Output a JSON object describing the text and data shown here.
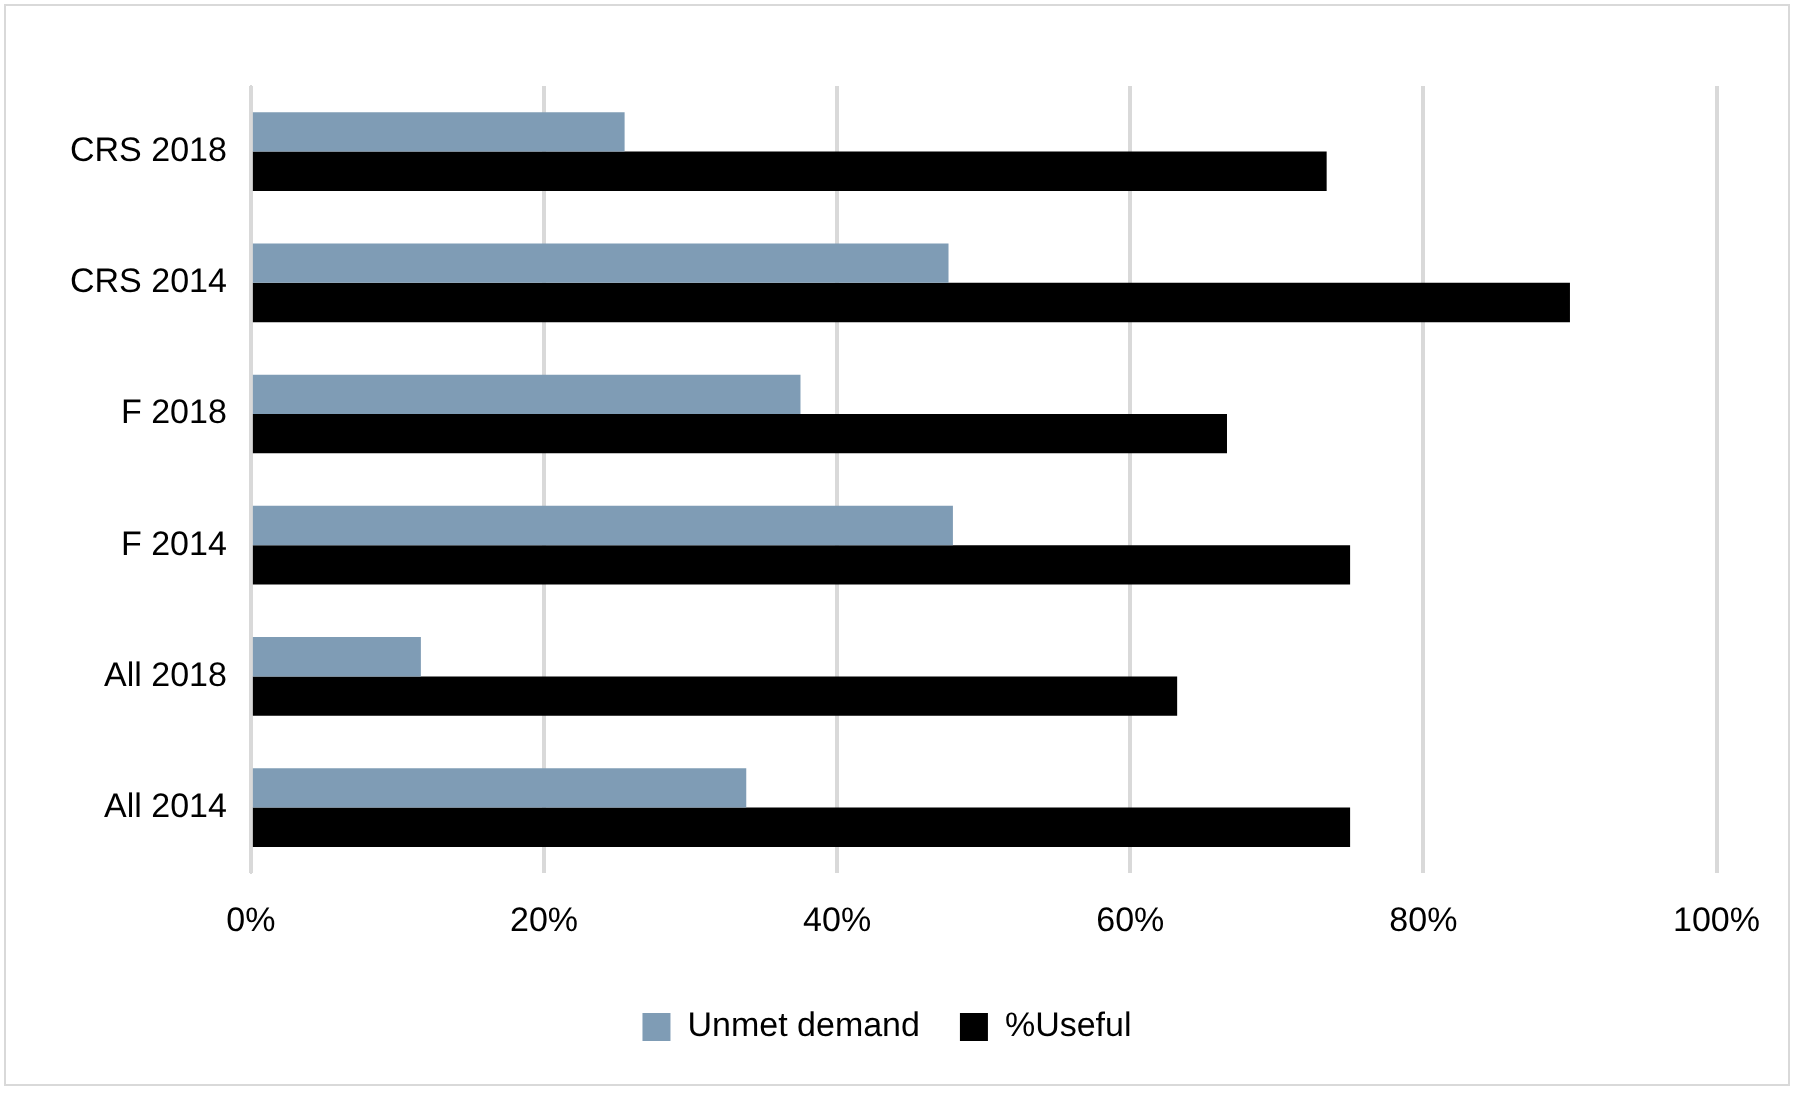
{
  "chart_data": {
    "type": "bar",
    "orientation": "horizontal",
    "categories": [
      "CRS 2018",
      "CRS 2014",
      "F 2018",
      "F 2014",
      "All 2018",
      "All 2014"
    ],
    "series": [
      {
        "name": "Unmet demand",
        "color": "#7f9cb5",
        "values": [
          25.5,
          47.6,
          37.5,
          47.9,
          11.6,
          33.8
        ]
      },
      {
        "name": "%Useful",
        "color": "#000000",
        "values": [
          73.4,
          90.0,
          66.6,
          75.0,
          63.2,
          75.0
        ]
      }
    ],
    "xlim": [
      0,
      100
    ],
    "xticks": [
      {
        "value": 0,
        "label": "0%"
      },
      {
        "value": 20,
        "label": "20%"
      },
      {
        "value": 40,
        "label": "40%"
      },
      {
        "value": 60,
        "label": "60%"
      },
      {
        "value": 80,
        "label": "80%"
      },
      {
        "value": 100,
        "label": "100%"
      }
    ],
    "grid": "x",
    "legend": "bottom"
  }
}
